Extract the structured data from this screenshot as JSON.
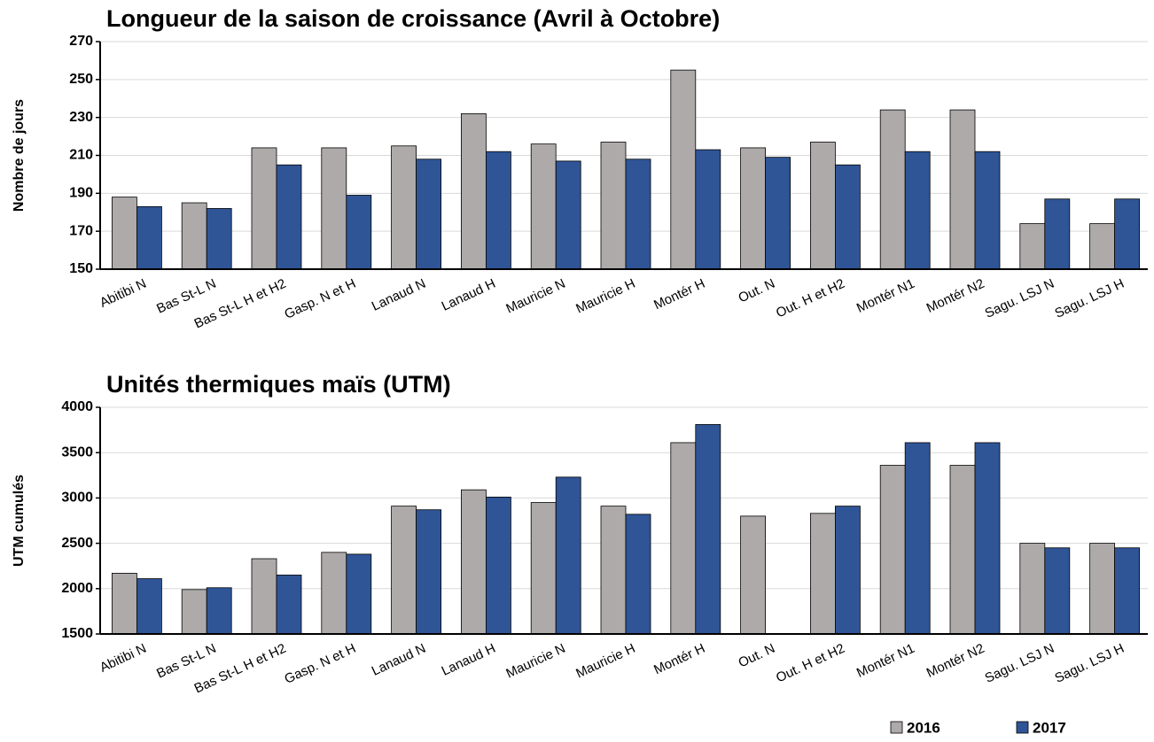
{
  "chart_data": [
    {
      "type": "bar",
      "title": "Longueur de la saison de croissance (Avril à Octobre)",
      "y_label": "Nombre de jours",
      "categories": [
        "Abitibi N",
        "Bas St-L N",
        "Bas St-L H et H2",
        "Gasp. N et H",
        "Lanaud N",
        "Lanaud H",
        "Mauricie N",
        "Mauricie H",
        "Montér H",
        "Out. N",
        "Out. H et H2",
        "Montér N1",
        "Montér N2",
        "Sagu. LSJ N",
        "Sagu. LSJ H"
      ],
      "series": [
        {
          "color": "#aeaaaa",
          "values": [
            188,
            185,
            214,
            214,
            215,
            232,
            216,
            217,
            255,
            214,
            217,
            234,
            234,
            174,
            174
          ]
        },
        {
          "color": "#2f5597",
          "values": [
            183,
            182,
            205,
            189,
            208,
            212,
            207,
            208,
            213,
            209,
            205,
            212,
            212,
            187,
            187
          ]
        }
      ],
      "ylim": [
        150,
        270
      ],
      "yticks": [
        150,
        170,
        190,
        210,
        230,
        250,
        270
      ],
      "grid": true
    },
    {
      "type": "bar",
      "title": "Unités thermiques maïs (UTM)",
      "y_label": "UTM cumulés",
      "categories": [
        "Abitibi N",
        "Bas St-L N",
        "Bas St-L H et H2",
        "Gasp. N et H",
        "Lanaud N",
        "Lanaud H",
        "Mauricie N",
        "Mauricie H",
        "Montér H",
        "Out. N",
        "Out. H et H2",
        "Montér N1",
        "Montér N2",
        "Sagu. LSJ N",
        "Sagu. LSJ H"
      ],
      "series": [
        {
          "name": "2016",
          "color": "#aeaaaa",
          "values": [
            2170,
            1990,
            2330,
            2400,
            2910,
            3090,
            2950,
            2910,
            3610,
            2800,
            2830,
            3360,
            3360,
            2500,
            2500
          ]
        },
        {
          "name": "2017",
          "color": "#2f5597",
          "values": [
            2110,
            2010,
            2150,
            2380,
            2870,
            3010,
            3230,
            2820,
            3810,
            null,
            2910,
            3610,
            3610,
            2450,
            2450
          ]
        }
      ],
      "ylim": [
        1500,
        4000
      ],
      "yticks": [
        1500,
        2000,
        2500,
        3000,
        3500,
        4000
      ],
      "grid": true
    }
  ]
}
